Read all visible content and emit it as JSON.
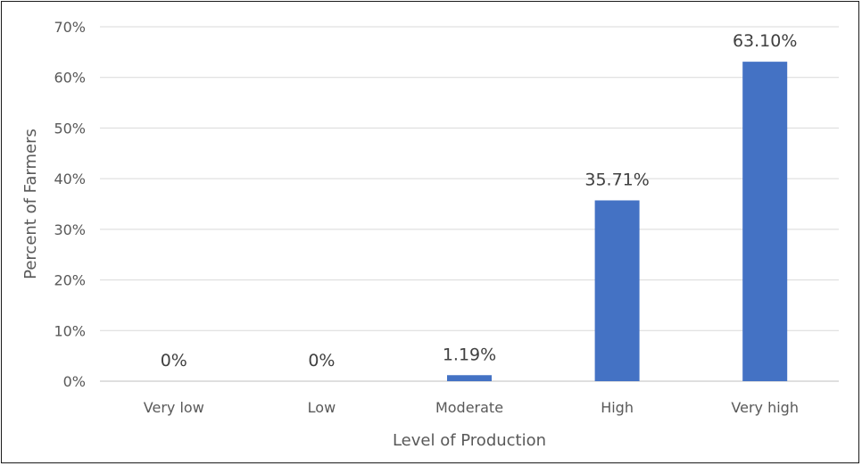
{
  "chart_data": {
    "type": "bar",
    "title": "",
    "xlabel": "Level of Production",
    "ylabel": "Percent of Farmers",
    "categories": [
      "Very low",
      "Low",
      "Moderate",
      "High",
      "Very high"
    ],
    "values": [
      0,
      0,
      1.19,
      35.71,
      63.1
    ],
    "data_labels": [
      "0%",
      "0%",
      "1.19%",
      "35.71%",
      "63.10%"
    ],
    "ylim": [
      0,
      70
    ],
    "yticks": [
      0,
      10,
      20,
      30,
      40,
      50,
      60,
      70
    ],
    "ytick_labels": [
      "0%",
      "10%",
      "20%",
      "30%",
      "40%",
      "50%",
      "60%",
      "70%"
    ],
    "grid": "horizontal",
    "legend": "none",
    "bar_color": "#4472C4",
    "gridline_color": "#D9D9D9"
  }
}
